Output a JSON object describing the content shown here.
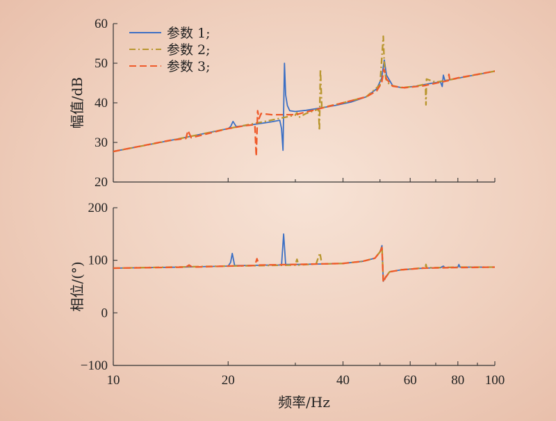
{
  "chart_data": [
    {
      "type": "line",
      "ylabel": "幅值/dB",
      "xlabel": "",
      "xscale": "log",
      "xlim": [
        10,
        100
      ],
      "ylim": [
        20,
        60
      ],
      "yticks": [
        "20",
        "30",
        "40",
        "50",
        "60"
      ],
      "legend_position": "top-left",
      "series": [
        {
          "name": "参数 1;",
          "color": "#3b6fc4",
          "style": "solid",
          "x": [
            10,
            15,
            20,
            20.3,
            20.6,
            21,
            22,
            24,
            26,
            27.3,
            27.6,
            27.85,
            28.0,
            28.1,
            28.3,
            28.6,
            29,
            30,
            32,
            35,
            38,
            42,
            46,
            49,
            50.5,
            51.3,
            52,
            54,
            57,
            62,
            67,
            72,
            72.8,
            73.3,
            74,
            78,
            85,
            92,
            100
          ],
          "y": [
            27.7,
            31.0,
            33.5,
            34.0,
            35.3,
            34.0,
            34.2,
            34.7,
            35.2,
            35.6,
            33.5,
            28.0,
            42.0,
            50.0,
            42.0,
            39.3,
            38.0,
            37.8,
            38.1,
            38.7,
            39.3,
            40.2,
            41.5,
            43.5,
            46.2,
            50.8,
            47.0,
            44.3,
            43.8,
            44.2,
            44.8,
            45.3,
            44.1,
            47.0,
            45.6,
            46.0,
            46.7,
            47.3,
            48.0
          ]
        },
        {
          "name": "参数 2;",
          "color": "#b8962e",
          "style": "dashdot",
          "x": [
            10,
            15,
            20,
            25,
            28,
            30,
            30.3,
            30.6,
            32,
            34.5,
            34.7,
            34.9,
            35.2,
            36,
            40,
            46,
            50,
            51.0,
            51.3,
            51.8,
            53,
            57,
            62,
            65.8,
            66.0,
            66.2,
            70,
            80,
            100
          ],
          "y": [
            27.7,
            31.0,
            33.5,
            35.3,
            36.3,
            36.9,
            37.5,
            36.3,
            37.3,
            38.4,
            33.0,
            48.5,
            38.6,
            39.0,
            40.0,
            41.5,
            44.5,
            56.8,
            50.0,
            46.0,
            44.5,
            43.8,
            44.2,
            44.7,
            39.5,
            46.0,
            45.2,
            46.2,
            48.0
          ]
        },
        {
          "name": "参数 3;",
          "color": "#ef5a2a",
          "style": "dashed",
          "x": [
            10,
            14,
            15.5,
            15.7,
            16,
            20,
            22,
            23.5,
            23.7,
            23.9,
            24.1,
            24.4,
            26,
            30,
            34,
            40,
            46,
            49,
            50.5,
            51.2,
            52,
            54,
            58,
            65,
            72,
            75.5,
            75.8,
            76.2,
            80,
            90,
            100
          ],
          "y": [
            27.7,
            30.5,
            31.0,
            33.0,
            31.2,
            33.5,
            34.2,
            34.5,
            26.5,
            38.0,
            36.0,
            37.3,
            37.0,
            37.0,
            38.3,
            40.0,
            41.5,
            43.0,
            45.0,
            48.5,
            46.0,
            44.2,
            43.8,
            44.3,
            45.2,
            45.6,
            47.2,
            45.8,
            46.3,
            47.2,
            48.0
          ]
        }
      ]
    },
    {
      "type": "line",
      "ylabel": "相位/(°)",
      "xlabel": "频率/Hz",
      "xscale": "log",
      "xlim": [
        10,
        100
      ],
      "ylim": [
        -100,
        200
      ],
      "xticks": [
        "10",
        "20",
        "40",
        "60",
        "80",
        "100"
      ],
      "yticks": [
        "−100",
        "0",
        "100",
        "200"
      ],
      "series": [
        {
          "name": "参数 1",
          "color": "#3b6fc4",
          "style": "solid",
          "x": [
            10,
            15,
            20,
            20.3,
            20.5,
            20.8,
            22,
            26,
            27.6,
            27.95,
            28.3,
            30,
            35,
            40,
            45,
            48.5,
            50.0,
            50.6,
            51.0,
            51.6,
            53,
            57,
            65,
            72,
            73.3,
            74,
            80,
            80.5,
            81,
            90,
            100
          ],
          "y": [
            85,
            87,
            89,
            96,
            113,
            90,
            90,
            91,
            91,
            150,
            92,
            92,
            93,
            94,
            98,
            104,
            116,
            128,
            60,
            67,
            78,
            82,
            85,
            86,
            89,
            86,
            87,
            92,
            87,
            87,
            87
          ]
        },
        {
          "name": "参数 2",
          "color": "#b8962e",
          "style": "dashdot",
          "x": [
            10,
            20,
            30,
            30.3,
            30.6,
            34,
            34.8,
            35.2,
            40,
            45,
            48.5,
            50.0,
            50.6,
            51.0,
            51.6,
            53,
            57,
            65.8,
            66.0,
            66.3,
            70,
            80,
            100
          ],
          "y": [
            85,
            89,
            91,
            102,
            91,
            93,
            114,
            93,
            94,
            98,
            104,
            116,
            126,
            62,
            67,
            78,
            82,
            86,
            92,
            86,
            86,
            87,
            87
          ]
        },
        {
          "name": "参数 3",
          "color": "#ef5a2a",
          "style": "dashed",
          "x": [
            10,
            15.5,
            15.8,
            16.1,
            20,
            23.5,
            23.8,
            24.1,
            30,
            40,
            45,
            48.5,
            50.0,
            50.6,
            51.0,
            51.6,
            53,
            57,
            65,
            75.5,
            75.8,
            76.2,
            100
          ],
          "y": [
            85,
            87,
            91,
            87,
            89,
            90,
            103,
            91,
            92,
            94,
            98,
            104,
            116,
            124,
            58,
            66,
            78,
            82,
            85,
            86,
            89,
            86,
            87
          ]
        }
      ]
    }
  ]
}
